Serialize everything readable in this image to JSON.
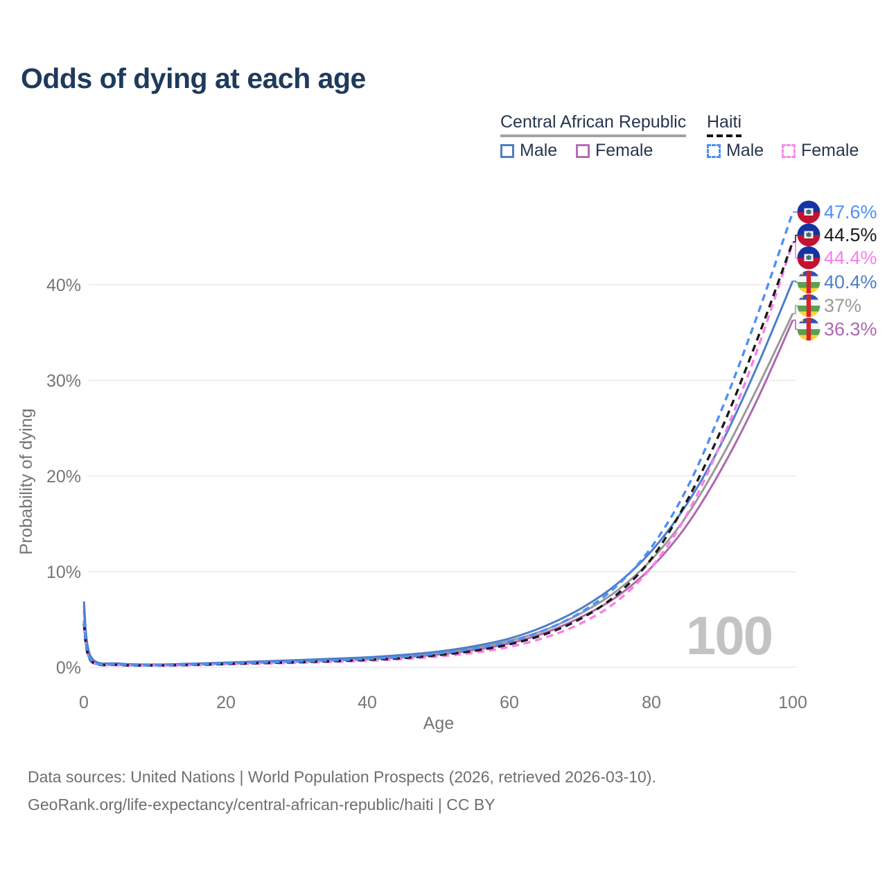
{
  "title": "Odds of dying at each age",
  "legend": {
    "groups": [
      {
        "label": "Central African Republic",
        "line_style": "solid",
        "underline_color": "#a3a3a3",
        "items": [
          {
            "label": "Male",
            "color": "#4d7ec9"
          },
          {
            "label": "Female",
            "color": "#b56db5"
          }
        ]
      },
      {
        "label": "Haiti",
        "line_style": "dashed",
        "underline_color": "#111111",
        "items": [
          {
            "label": "Male",
            "color": "#4e8ef7"
          },
          {
            "label": "Female",
            "color": "#fb87f0"
          }
        ]
      }
    ]
  },
  "chart_data": {
    "type": "line",
    "title": "Odds of dying at each age",
    "xlabel": "Age",
    "ylabel": "Probability of dying",
    "xlim": [
      0,
      100
    ],
    "ylim": [
      0,
      48
    ],
    "grid": "horizontal",
    "legend_position": "top-right",
    "watermark": "100",
    "x_ticks": [
      "0",
      "20",
      "40",
      "60",
      "80",
      "100"
    ],
    "y_ticks": [
      "0%",
      "10%",
      "20%",
      "30%",
      "40%"
    ],
    "x": [
      0,
      1,
      5,
      10,
      15,
      20,
      25,
      30,
      35,
      40,
      45,
      50,
      55,
      60,
      65,
      70,
      75,
      80,
      85,
      90,
      95,
      100
    ],
    "series": [
      {
        "id": "haiti-male",
        "name": "Haiti Male",
        "country": "Haiti",
        "sex": "Male",
        "style": "dashed",
        "color": "#4e8ef7",
        "end_label": "47.6%",
        "end_value": 47.6,
        "values": [
          4.9,
          0.75,
          0.28,
          0.22,
          0.28,
          0.4,
          0.5,
          0.6,
          0.72,
          0.88,
          1.1,
          1.45,
          1.95,
          2.7,
          3.9,
          5.7,
          8.4,
          12.5,
          18.6,
          27.0,
          36.8,
          47.6
        ]
      },
      {
        "id": "haiti-both",
        "name": "Haiti Both sexes",
        "country": "Haiti",
        "sex": "Both",
        "style": "dashed",
        "color": "#1a1a1a",
        "end_label": "44.5%",
        "end_value": 44.5,
        "values": [
          4.6,
          0.68,
          0.25,
          0.2,
          0.25,
          0.35,
          0.44,
          0.53,
          0.64,
          0.78,
          0.97,
          1.28,
          1.72,
          2.4,
          3.45,
          5.05,
          7.5,
          11.3,
          17.3,
          25.0,
          34.3,
          44.5
        ]
      },
      {
        "id": "haiti-female",
        "name": "Haiti Female",
        "country": "Haiti",
        "sex": "Female",
        "style": "dashed",
        "color": "#fa7de9",
        "end_label": "44.4%",
        "end_value": 44.4,
        "values": [
          4.3,
          0.62,
          0.22,
          0.18,
          0.22,
          0.31,
          0.39,
          0.47,
          0.57,
          0.69,
          0.86,
          1.13,
          1.52,
          2.13,
          3.1,
          4.55,
          6.8,
          10.4,
          15.9,
          23.7,
          33.2,
          44.4
        ]
      },
      {
        "id": "car-male",
        "name": "Central African Republic Male",
        "country": "Central African Republic",
        "sex": "Male",
        "style": "solid",
        "color": "#4d7ec9",
        "end_label": "40.4%",
        "end_value": 40.4,
        "values": [
          6.9,
          1.1,
          0.4,
          0.3,
          0.38,
          0.5,
          0.62,
          0.75,
          0.9,
          1.05,
          1.3,
          1.65,
          2.2,
          3.0,
          4.3,
          6.1,
          8.6,
          12.1,
          17.0,
          23.5,
          31.5,
          40.4
        ]
      },
      {
        "id": "car-both",
        "name": "Central African Republic Both sexes",
        "country": "Central African Republic",
        "sex": "Both",
        "style": "solid",
        "color": "#9a9a9a",
        "end_label": "37%",
        "end_value": 37.0,
        "values": [
          6.4,
          1.0,
          0.36,
          0.27,
          0.34,
          0.45,
          0.56,
          0.68,
          0.81,
          0.95,
          1.18,
          1.5,
          2.0,
          2.75,
          3.9,
          5.6,
          7.9,
          11.2,
          15.8,
          22.0,
          29.2,
          37.0
        ]
      },
      {
        "id": "car-female",
        "name": "Central African Republic Female",
        "country": "Central African Republic",
        "sex": "Female",
        "style": "solid",
        "color": "#ae68ae",
        "end_label": "36.3%",
        "end_value": 36.3,
        "values": [
          5.9,
          0.95,
          0.33,
          0.25,
          0.3,
          0.4,
          0.5,
          0.6,
          0.72,
          0.85,
          1.05,
          1.35,
          1.8,
          2.5,
          3.6,
          5.2,
          7.3,
          10.4,
          14.8,
          20.8,
          28.0,
          36.3
        ]
      }
    ]
  },
  "footer": {
    "line1": "Data sources: United Nations | World Population Prospects (2026, retrieved 2026-03-10).",
    "line2": "GeoRank.org/life-expectancy/central-african-republic/haiti | CC BY"
  }
}
